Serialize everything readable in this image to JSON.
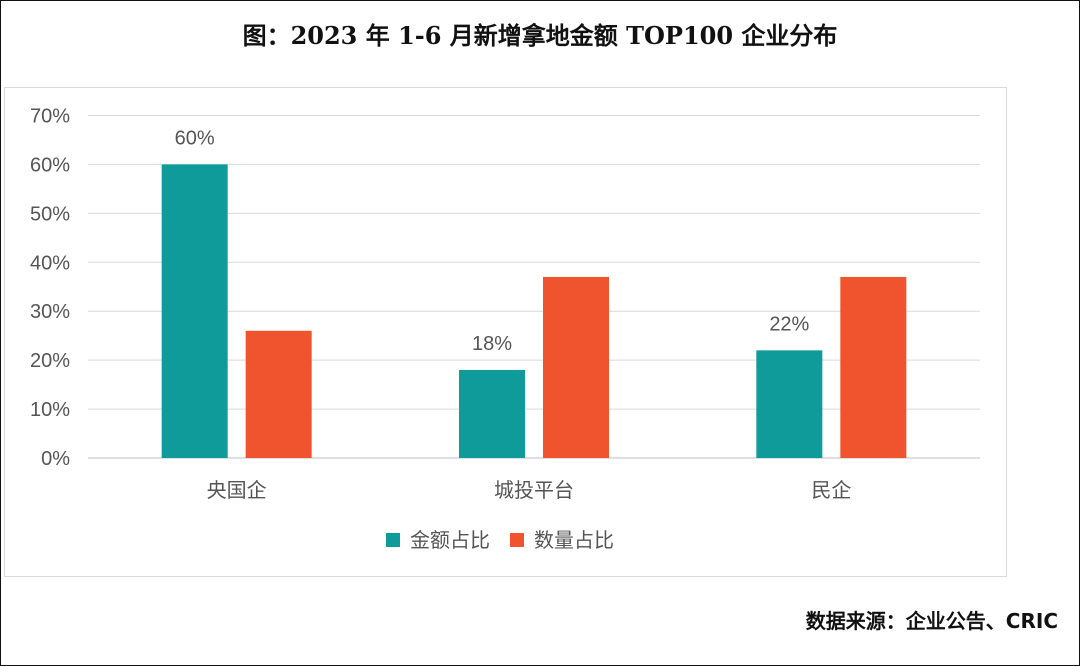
{
  "title": "图：2023 年 1-6 月新增拿地金额 TOP100 企业分布",
  "source": "数据来源：企业公告、CRIC",
  "colors": {
    "amount": "#0e9b9a",
    "count": "#f0542f",
    "grid": "#d9d9d9",
    "text": "#555555"
  },
  "chart_data": {
    "type": "bar",
    "categories": [
      "央国企",
      "城投平台",
      "民企"
    ],
    "series": [
      {
        "name": "金额占比",
        "values": [
          60,
          18,
          22
        ],
        "data_labels": [
          "60%",
          "18%",
          "22%"
        ]
      },
      {
        "name": "数量占比",
        "values": [
          26,
          37,
          37
        ]
      }
    ],
    "y_unit": "%",
    "ylim": [
      0,
      70
    ],
    "y_ticks": [
      0,
      10,
      20,
      30,
      40,
      50,
      60,
      70
    ],
    "y_tick_labels": [
      "0%",
      "10%",
      "20%",
      "30%",
      "40%",
      "50%",
      "60%",
      "70%"
    ],
    "grid": true,
    "legend_position": "bottom-center"
  }
}
